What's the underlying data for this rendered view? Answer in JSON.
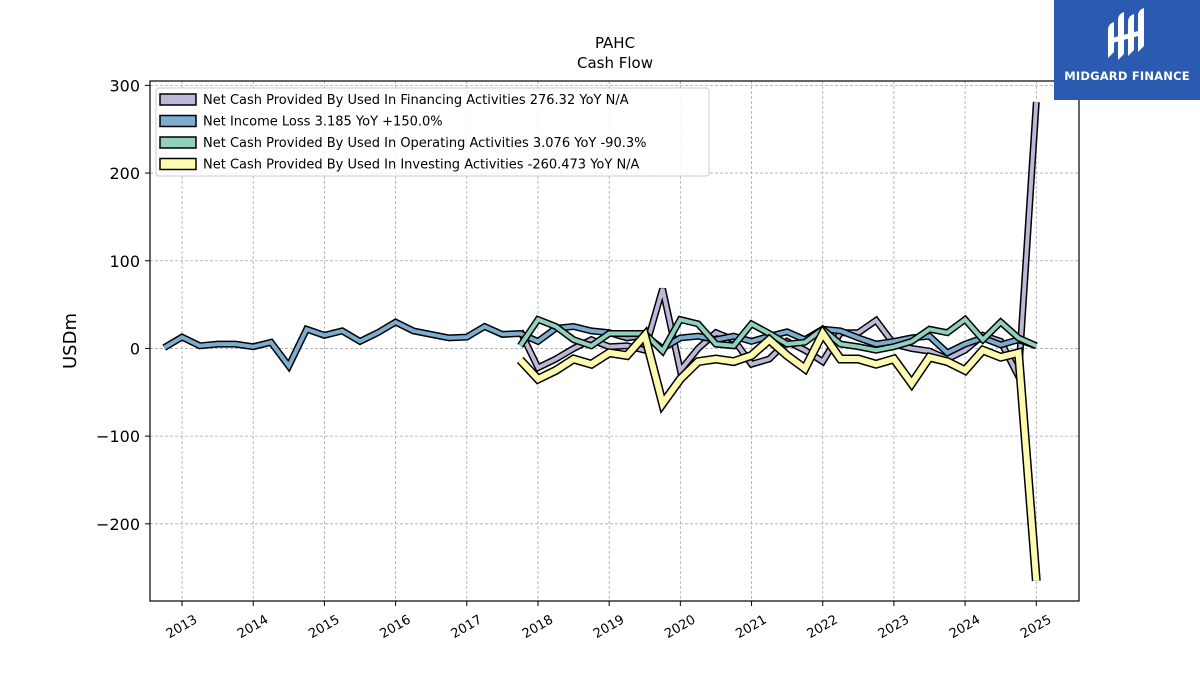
{
  "chart_data": {
    "type": "line",
    "title": "PAHC",
    "subtitle": "Cash Flow",
    "ylabel": "USDm",
    "xlabel": "",
    "xlim": [
      2012.55,
      2025.6
    ],
    "ylim": [
      -288,
      305
    ],
    "grid": true,
    "legend_position": "top-left",
    "x_ticks": [
      2013,
      2014,
      2015,
      2016,
      2017,
      2018,
      2019,
      2020,
      2021,
      2022,
      2023,
      2024,
      2025
    ],
    "x_tick_labels": [
      "2013",
      "2014",
      "2015",
      "2016",
      "2017",
      "2018",
      "2019",
      "2020",
      "2021",
      "2022",
      "2023",
      "2024",
      "2025"
    ],
    "y_ticks": [
      300,
      200,
      100,
      0,
      -100,
      -200
    ],
    "y_tick_labels": [
      "300",
      "200",
      "100",
      "0",
      "−100",
      "−200"
    ],
    "series": [
      {
        "name": "Net Cash Provided By Used In Financing Activities",
        "legend": "Net Cash Provided By Used In Financing Activities  276.32 YoY N/A",
        "color": "#bcb8d8",
        "width": 4,
        "x": [
          2017.75,
          2018.0,
          2018.25,
          2018.5,
          2018.75,
          2019.0,
          2019.25,
          2019.5,
          2019.75,
          2020.0,
          2020.25,
          2020.5,
          2020.75,
          2021.0,
          2021.25,
          2021.5,
          2021.75,
          2022.0,
          2022.25,
          2022.5,
          2022.75,
          2023.0,
          2023.25,
          2023.5,
          2023.75,
          2024.0,
          2024.25,
          2024.5,
          2024.75,
          2025.0
        ],
        "y": [
          20,
          -22,
          -12,
          0,
          10,
          2,
          3,
          -2,
          68,
          -25,
          0,
          18,
          10,
          -18,
          -12,
          8,
          -2,
          -15,
          18,
          18,
          32,
          5,
          0,
          -3,
          -12,
          -2,
          15,
          8,
          -32,
          281
        ]
      },
      {
        "name": "Net Income Loss",
        "legend": "Net Income Loss  3.185 YoY +150.0%",
        "color": "#7aadd0",
        "width": 4,
        "x": [
          2012.75,
          2013.0,
          2013.25,
          2013.5,
          2013.75,
          2014.0,
          2014.25,
          2014.5,
          2014.75,
          2015.0,
          2015.25,
          2015.5,
          2015.75,
          2016.0,
          2016.25,
          2016.5,
          2016.75,
          2017.0,
          2017.25,
          2017.5,
          2017.75,
          2018.0,
          2018.25,
          2018.5,
          2018.75,
          2019.0,
          2019.25,
          2019.5,
          2019.75,
          2020.0,
          2020.25,
          2020.5,
          2020.75,
          2021.0,
          2021.25,
          2021.5,
          2021.75,
          2022.0,
          2022.25,
          2022.5,
          2022.75,
          2023.0,
          2023.25,
          2023.5,
          2023.75,
          2024.0,
          2024.25,
          2024.5,
          2024.75,
          2025.0
        ],
        "y": [
          1,
          13,
          3,
          5,
          5,
          2,
          7,
          -20,
          22,
          15,
          20,
          8,
          18,
          30,
          20,
          16,
          12,
          13,
          25,
          16,
          17,
          8,
          23,
          25,
          20,
          18,
          12,
          15,
          0,
          12,
          14,
          10,
          14,
          8,
          14,
          19,
          10,
          22,
          20,
          12,
          5,
          8,
          12,
          14,
          -5,
          5,
          12,
          4,
          10,
          3
        ]
      },
      {
        "name": "Net Cash Provided By Used In Operating Activities",
        "legend": "Net Cash Provided By Used In Operating Activities  3.076 YoY -90.3%",
        "color": "#8fd0bf",
        "width": 4,
        "x": [
          2017.75,
          2018.0,
          2018.25,
          2018.5,
          2018.75,
          2019.0,
          2019.25,
          2019.5,
          2019.75,
          2020.0,
          2020.25,
          2020.5,
          2020.75,
          2021.0,
          2021.25,
          2021.5,
          2021.75,
          2022.0,
          2022.25,
          2022.5,
          2022.75,
          2023.0,
          2023.25,
          2023.5,
          2023.75,
          2024.0,
          2024.25,
          2024.5,
          2024.75,
          2025.0
        ],
        "y": [
          3,
          33,
          25,
          10,
          3,
          17,
          17,
          17,
          -3,
          33,
          28,
          5,
          3,
          28,
          17,
          5,
          7,
          22,
          5,
          2,
          -2,
          2,
          8,
          22,
          18,
          33,
          10,
          30,
          12,
          3
        ]
      },
      {
        "name": "Net Cash Provided By Used In Investing Activities",
        "legend": "Net Cash Provided By Used In Investing Activities  -260.473 YoY N/A",
        "color": "#fdfab0",
        "width": 6,
        "x": [
          2017.75,
          2018.0,
          2018.25,
          2018.5,
          2018.75,
          2019.0,
          2019.25,
          2019.5,
          2019.75,
          2020.0,
          2020.25,
          2020.5,
          2020.75,
          2021.0,
          2021.25,
          2021.5,
          2021.75,
          2022.0,
          2022.25,
          2022.5,
          2022.75,
          2023.0,
          2023.25,
          2023.5,
          2023.75,
          2024.0,
          2024.25,
          2024.5,
          2024.75,
          2025.0
        ],
        "y": [
          -13,
          -35,
          -25,
          -12,
          -18,
          -5,
          -8,
          15,
          -63,
          -35,
          -15,
          -12,
          -15,
          -8,
          10,
          -8,
          -23,
          17,
          -12,
          -12,
          -18,
          -12,
          -40,
          -10,
          -15,
          -25,
          -2,
          -10,
          -5,
          -265
        ]
      }
    ]
  },
  "logo": {
    "text": "MIDGARD FINANCE",
    "background": "#2a5bb0"
  }
}
